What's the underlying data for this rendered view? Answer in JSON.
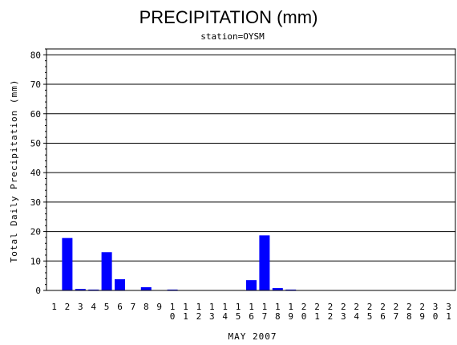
{
  "chart_data": {
    "type": "bar",
    "title": "PRECIPITATION (mm)",
    "subtitle": "station=OYSM",
    "xlabel": "MAY 2007",
    "ylabel": "Total Daily Precipitation (mm)",
    "ylim": [
      0,
      82
    ],
    "yticks": [
      0,
      10,
      20,
      30,
      40,
      50,
      60,
      70,
      80
    ],
    "grid": true,
    "bar_color": "#0000ff",
    "categories": [
      "1",
      "2",
      "3",
      "4",
      "5",
      "6",
      "7",
      "8",
      "9",
      "10",
      "11",
      "12",
      "13",
      "14",
      "15",
      "16",
      "17",
      "18",
      "19",
      "20",
      "21",
      "22",
      "23",
      "24",
      "25",
      "26",
      "27",
      "28",
      "29",
      "30",
      "31"
    ],
    "values": [
      0,
      17.8,
      0.5,
      0.3,
      13.0,
      3.8,
      0,
      1.1,
      0,
      0.3,
      0,
      0,
      0,
      0,
      0,
      3.5,
      18.7,
      0.8,
      0.3,
      0,
      0,
      0,
      0,
      0,
      0,
      0,
      0,
      0,
      0,
      0,
      0
    ]
  }
}
